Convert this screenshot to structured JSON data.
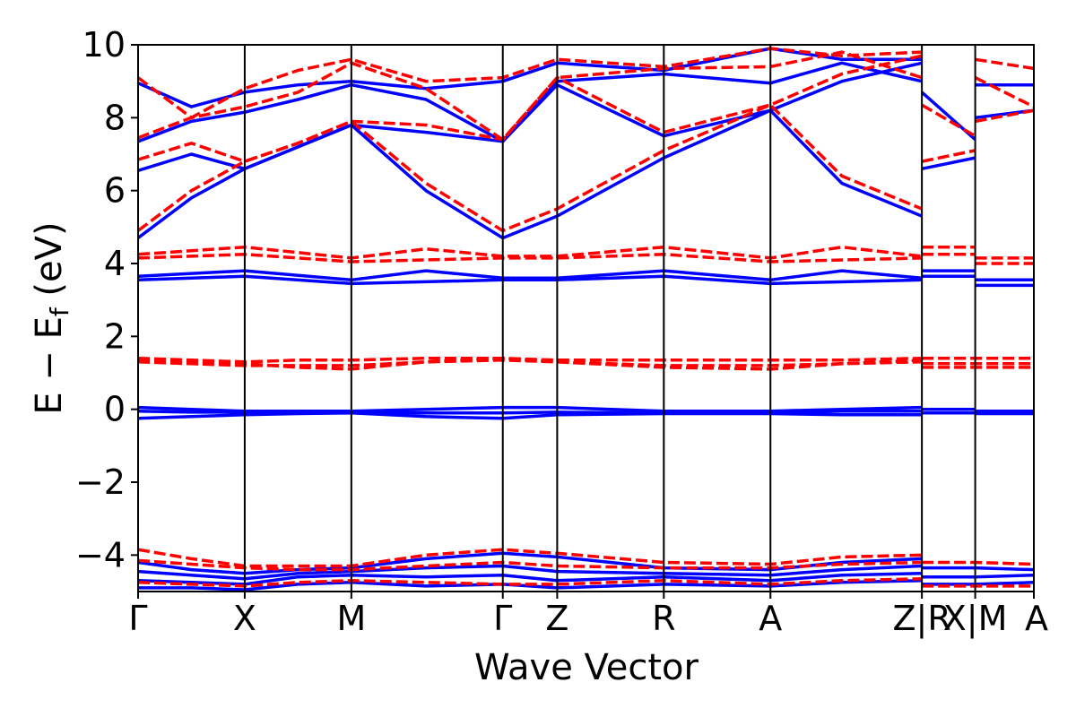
{
  "chart_data": {
    "type": "line",
    "title": "",
    "xlabel": "Wave Vector",
    "ylabel": "E − E_f (eV)",
    "ylabel_parts": {
      "main": "E − E",
      "sub": "f",
      "unit": " (eV)"
    },
    "ylim": [
      -5,
      10
    ],
    "yticks": [
      -4,
      -2,
      0,
      2,
      4,
      6,
      8,
      10
    ],
    "ytick_labels": [
      "−4",
      "−2",
      "0",
      "2",
      "4",
      "6",
      "8",
      "10"
    ],
    "xlim": [
      0,
      8.4
    ],
    "kpoints": [
      {
        "label": "Γ",
        "x": 0.0
      },
      {
        "label": "X",
        "x": 1.0
      },
      {
        "label": "M",
        "x": 2.0
      },
      {
        "label": "Γ",
        "x": 3.42
      },
      {
        "label": "Z",
        "x": 3.93
      },
      {
        "label": "R",
        "x": 4.93
      },
      {
        "label": "A",
        "x": 5.93
      },
      {
        "label": "Z|R",
        "x": 7.35
      },
      {
        "label": "X|M",
        "x": 7.85
      },
      {
        "label": "A",
        "x": 8.4
      }
    ],
    "vlines": [
      1.0,
      2.0,
      3.42,
      3.93,
      4.93,
      5.93,
      7.35,
      7.85
    ],
    "grid": false,
    "series_styles": {
      "spin_up": {
        "color": "#0000ff",
        "dash": "solid"
      },
      "spin_down": {
        "color": "#ff0000",
        "dash": "dashed"
      }
    },
    "series": [
      {
        "style": "spin_up",
        "x": [
          0,
          0.5,
          1.0,
          1.5,
          2.0,
          2.7,
          3.42,
          3.93,
          4.93,
          5.93,
          6.6,
          7.35
        ],
        "y": [
          0.05,
          0.0,
          -0.05,
          -0.05,
          -0.05,
          0.0,
          0.05,
          0.05,
          -0.05,
          -0.05,
          0.0,
          0.05
        ]
      },
      {
        "style": "spin_up",
        "x": [
          0,
          0.5,
          1.0,
          1.5,
          2.0,
          2.7,
          3.42,
          3.93,
          4.93,
          5.93,
          6.6,
          7.35
        ],
        "y": [
          -0.05,
          -0.08,
          -0.08,
          -0.08,
          -0.08,
          -0.1,
          -0.1,
          -0.08,
          -0.1,
          -0.1,
          -0.05,
          -0.05
        ]
      },
      {
        "style": "spin_up",
        "x": [
          0,
          0.5,
          1.0,
          1.5,
          2.0,
          2.7,
          3.42,
          3.93,
          4.93,
          5.93,
          6.6,
          7.35
        ],
        "y": [
          -0.25,
          -0.2,
          -0.15,
          -0.12,
          -0.1,
          -0.2,
          -0.25,
          -0.15,
          -0.12,
          -0.12,
          -0.15,
          -0.15
        ]
      },
      {
        "style": "spin_up",
        "x": [
          7.35,
          7.85
        ],
        "y": [
          0.0,
          0.0
        ]
      },
      {
        "style": "spin_up",
        "x": [
          7.35,
          7.85
        ],
        "y": [
          -0.1,
          -0.1
        ]
      },
      {
        "style": "spin_up",
        "x": [
          7.85,
          8.4
        ],
        "y": [
          -0.05,
          -0.05
        ]
      },
      {
        "style": "spin_up",
        "x": [
          7.85,
          8.4
        ],
        "y": [
          -0.12,
          -0.12
        ]
      },
      {
        "style": "spin_up",
        "x": [
          0,
          1.0,
          2.0,
          2.7,
          3.42,
          3.93,
          4.93,
          5.93,
          6.6,
          7.35
        ],
        "y": [
          3.65,
          3.8,
          3.55,
          3.8,
          3.6,
          3.6,
          3.8,
          3.55,
          3.8,
          3.6
        ]
      },
      {
        "style": "spin_up",
        "x": [
          0,
          1.0,
          2.0,
          3.42,
          3.93,
          4.93,
          5.93,
          7.35
        ],
        "y": [
          3.55,
          3.65,
          3.45,
          3.55,
          3.55,
          3.65,
          3.45,
          3.55
        ]
      },
      {
        "style": "spin_up",
        "x": [
          7.35,
          7.85
        ],
        "y": [
          3.8,
          3.8
        ]
      },
      {
        "style": "spin_up",
        "x": [
          7.35,
          7.85
        ],
        "y": [
          3.65,
          3.65
        ]
      },
      {
        "style": "spin_up",
        "x": [
          7.85,
          8.4
        ],
        "y": [
          3.55,
          3.55
        ]
      },
      {
        "style": "spin_up",
        "x": [
          7.85,
          8.4
        ],
        "y": [
          3.4,
          3.4
        ]
      },
      {
        "style": "spin_up",
        "x": [
          0,
          0.5,
          1.0,
          1.5,
          2.0,
          2.7,
          3.42,
          3.93,
          4.93,
          5.93,
          6.6,
          7.35
        ],
        "y": [
          4.7,
          5.8,
          6.6,
          7.2,
          7.8,
          6.0,
          4.7,
          5.3,
          6.9,
          8.2,
          6.2,
          5.3
        ]
      },
      {
        "style": "spin_up",
        "x": [
          0,
          0.5,
          1.0,
          1.5,
          2.0,
          2.7,
          3.42,
          3.93,
          4.93,
          5.93,
          6.6,
          7.35
        ],
        "y": [
          6.55,
          7.0,
          6.6,
          7.2,
          7.8,
          7.6,
          7.35,
          8.9,
          7.5,
          8.2,
          9.0,
          9.5
        ]
      },
      {
        "style": "spin_up",
        "x": [
          0,
          0.5,
          1.0,
          1.5,
          2.0,
          2.7,
          3.42,
          3.93,
          4.93,
          5.93,
          6.6,
          7.35
        ],
        "y": [
          7.35,
          7.9,
          8.15,
          8.5,
          8.9,
          8.5,
          7.35,
          9.0,
          9.2,
          8.95,
          9.5,
          9.0
        ]
      },
      {
        "style": "spin_up",
        "x": [
          0,
          0.5,
          1.0,
          1.5,
          2.0,
          2.7,
          3.42,
          3.93,
          4.93,
          5.93,
          6.6,
          7.35
        ],
        "y": [
          8.95,
          8.3,
          8.7,
          8.9,
          9.0,
          8.8,
          9.0,
          9.5,
          9.3,
          9.9,
          9.6,
          9.6
        ]
      },
      {
        "style": "spin_up",
        "x": [
          7.35,
          7.85
        ],
        "y": [
          6.6,
          6.9
        ]
      },
      {
        "style": "spin_up",
        "x": [
          7.35,
          7.85
        ],
        "y": [
          8.7,
          7.4
        ]
      },
      {
        "style": "spin_up",
        "x": [
          7.85,
          8.4
        ],
        "y": [
          8.9,
          8.9
        ]
      },
      {
        "style": "spin_up",
        "x": [
          7.85,
          8.4
        ],
        "y": [
          8.0,
          8.2
        ]
      },
      {
        "style": "spin_up",
        "x": [
          0,
          0.5,
          1.0,
          1.5,
          2.0,
          2.7,
          3.42,
          3.93,
          4.93,
          5.93,
          6.6,
          7.35
        ],
        "y": [
          -4.2,
          -4.4,
          -4.5,
          -4.4,
          -4.35,
          -4.1,
          -3.95,
          -4.05,
          -4.35,
          -4.4,
          -4.2,
          -4.1
        ]
      },
      {
        "style": "spin_up",
        "x": [
          0,
          0.5,
          1.0,
          1.5,
          2.0,
          2.7,
          3.42,
          3.93,
          4.93,
          5.93,
          6.6,
          7.35
        ],
        "y": [
          -4.45,
          -4.55,
          -4.65,
          -4.5,
          -4.45,
          -4.35,
          -4.3,
          -4.45,
          -4.5,
          -4.55,
          -4.4,
          -4.3
        ]
      },
      {
        "style": "spin_up",
        "x": [
          0,
          0.5,
          1.0,
          1.5,
          2.0,
          2.7,
          3.42,
          3.93,
          4.93,
          5.93,
          6.6,
          7.35
        ],
        "y": [
          -4.7,
          -4.75,
          -4.8,
          -4.6,
          -4.55,
          -4.6,
          -4.55,
          -4.7,
          -4.6,
          -4.7,
          -4.55,
          -4.5
        ]
      },
      {
        "style": "spin_up",
        "x": [
          0,
          0.5,
          1.0,
          1.5,
          2.0,
          2.7,
          3.42,
          3.93,
          4.93,
          5.93,
          6.6,
          7.35
        ],
        "y": [
          -4.9,
          -4.9,
          -4.95,
          -4.8,
          -4.75,
          -4.85,
          -4.8,
          -4.9,
          -4.8,
          -4.85,
          -4.75,
          -4.7
        ]
      },
      {
        "style": "spin_up",
        "x": [
          7.35,
          7.85,
          8.4
        ],
        "y": [
          -4.35,
          -4.35,
          -4.4
        ]
      },
      {
        "style": "spin_up",
        "x": [
          7.35,
          7.85,
          8.4
        ],
        "y": [
          -4.6,
          -4.6,
          -4.55
        ]
      },
      {
        "style": "spin_up",
        "x": [
          7.35,
          7.85,
          8.4
        ],
        "y": [
          -4.8,
          -4.8,
          -4.75
        ]
      },
      {
        "style": "spin_down",
        "x": [
          0,
          0.5,
          1.0,
          1.5,
          2.0,
          2.7,
          3.42,
          3.93,
          4.93,
          5.93,
          6.6,
          7.35
        ],
        "y": [
          1.4,
          1.35,
          1.3,
          1.35,
          1.35,
          1.4,
          1.4,
          1.35,
          1.35,
          1.35,
          1.35,
          1.4
        ]
      },
      {
        "style": "spin_down",
        "x": [
          0,
          0.5,
          1.0,
          1.5,
          2.0,
          2.7,
          3.42,
          3.93,
          4.93,
          5.93,
          6.6,
          7.35
        ],
        "y": [
          1.3,
          1.25,
          1.2,
          1.2,
          1.2,
          1.3,
          1.35,
          1.3,
          1.2,
          1.2,
          1.25,
          1.3
        ]
      },
      {
        "style": "spin_down",
        "x": [
          0,
          0.5,
          1.0,
          1.5,
          2.0,
          2.7,
          3.42,
          3.93,
          4.93,
          5.93,
          6.6,
          7.35
        ],
        "y": [
          1.35,
          1.3,
          1.25,
          1.15,
          1.1,
          1.3,
          1.4,
          1.3,
          1.15,
          1.1,
          1.25,
          1.35
        ]
      },
      {
        "style": "spin_down",
        "x": [
          7.35,
          8.4
        ],
        "y": [
          1.4,
          1.4
        ]
      },
      {
        "style": "spin_down",
        "x": [
          7.35,
          8.4
        ],
        "y": [
          1.25,
          1.25
        ]
      },
      {
        "style": "spin_down",
        "x": [
          7.35,
          8.4
        ],
        "y": [
          1.15,
          1.15
        ]
      },
      {
        "style": "spin_down",
        "x": [
          0,
          1.0,
          2.0,
          2.7,
          3.42,
          3.93,
          4.93,
          5.93,
          6.6,
          7.35
        ],
        "y": [
          4.25,
          4.45,
          4.15,
          4.4,
          4.2,
          4.2,
          4.45,
          4.15,
          4.45,
          4.2
        ]
      },
      {
        "style": "spin_down",
        "x": [
          0,
          1.0,
          2.0,
          3.42,
          3.93,
          4.93,
          5.93,
          7.35
        ],
        "y": [
          4.15,
          4.25,
          4.05,
          4.15,
          4.15,
          4.25,
          4.05,
          4.15
        ]
      },
      {
        "style": "spin_down",
        "x": [
          7.35,
          7.85
        ],
        "y": [
          4.45,
          4.45
        ]
      },
      {
        "style": "spin_down",
        "x": [
          7.35,
          7.85
        ],
        "y": [
          4.25,
          4.25
        ]
      },
      {
        "style": "spin_down",
        "x": [
          7.85,
          8.4
        ],
        "y": [
          4.15,
          4.15
        ]
      },
      {
        "style": "spin_down",
        "x": [
          7.85,
          8.4
        ],
        "y": [
          4.0,
          4.0
        ]
      },
      {
        "style": "spin_down",
        "x": [
          0,
          0.5,
          1.0,
          1.5,
          2.0,
          2.7,
          3.42,
          3.93,
          4.93,
          5.93,
          6.6,
          7.35
        ],
        "y": [
          4.9,
          6.0,
          6.8,
          7.3,
          7.9,
          6.2,
          4.9,
          5.5,
          7.1,
          8.35,
          6.4,
          5.5
        ]
      },
      {
        "style": "spin_down",
        "x": [
          0,
          0.5,
          1.0,
          1.5,
          2.0,
          2.7,
          3.42,
          3.93,
          4.93,
          5.93,
          6.6,
          7.35
        ],
        "y": [
          6.85,
          7.3,
          6.8,
          7.3,
          7.9,
          7.8,
          7.4,
          9.1,
          7.6,
          8.35,
          9.2,
          9.7
        ]
      },
      {
        "style": "spin_down",
        "x": [
          0,
          0.5,
          1.0,
          1.5,
          2.0,
          2.7,
          3.42,
          3.93,
          4.93,
          5.93,
          6.6,
          7.35
        ],
        "y": [
          7.45,
          8.0,
          8.3,
          8.7,
          9.5,
          8.8,
          7.4,
          9.1,
          9.35,
          9.4,
          9.8,
          9.1
        ]
      },
      {
        "style": "spin_down",
        "x": [
          0,
          0.5,
          1.0,
          1.5,
          2.0,
          2.7,
          3.42,
          3.93,
          4.93,
          5.93,
          6.6,
          7.35
        ],
        "y": [
          9.1,
          8.0,
          8.8,
          9.3,
          9.6,
          9.0,
          9.1,
          9.6,
          9.4,
          9.9,
          9.7,
          9.8
        ]
      },
      {
        "style": "spin_down",
        "x": [
          7.35,
          7.85
        ],
        "y": [
          6.8,
          7.1
        ]
      },
      {
        "style": "spin_down",
        "x": [
          7.35,
          7.85
        ],
        "y": [
          8.35,
          7.5
        ]
      },
      {
        "style": "spin_down",
        "x": [
          7.85,
          8.4
        ],
        "y": [
          9.6,
          9.35
        ]
      },
      {
        "style": "spin_down",
        "x": [
          7.85,
          8.4
        ],
        "y": [
          7.9,
          8.2
        ]
      },
      {
        "style": "spin_down",
        "x": [
          7.85,
          8.4
        ],
        "y": [
          9.1,
          8.3
        ]
      },
      {
        "style": "spin_down",
        "x": [
          0,
          0.5,
          1.0,
          1.5,
          2.0,
          2.7,
          3.42,
          3.93,
          4.93,
          5.93,
          6.6,
          7.35
        ],
        "y": [
          -3.85,
          -4.1,
          -4.3,
          -4.3,
          -4.3,
          -4.0,
          -3.85,
          -3.95,
          -4.2,
          -4.25,
          -4.05,
          -4.0
        ]
      },
      {
        "style": "spin_down",
        "x": [
          0,
          0.5,
          1.0,
          1.5,
          2.0,
          2.7,
          3.42,
          3.93,
          4.93,
          5.93,
          6.6,
          7.35
        ],
        "y": [
          -4.15,
          -4.25,
          -4.35,
          -4.4,
          -4.4,
          -4.3,
          -4.2,
          -4.3,
          -4.35,
          -4.35,
          -4.25,
          -4.2
        ]
      },
      {
        "style": "spin_down",
        "x": [
          0,
          0.5,
          1.0,
          1.5,
          2.0,
          2.7,
          3.42,
          3.93,
          4.93,
          5.93,
          6.6,
          7.35
        ],
        "y": [
          -4.75,
          -4.8,
          -4.85,
          -4.75,
          -4.7,
          -4.75,
          -4.8,
          -4.8,
          -4.7,
          -4.8,
          -4.7,
          -4.65
        ]
      },
      {
        "style": "spin_down",
        "x": [
          7.35,
          7.85,
          8.4
        ],
        "y": [
          -4.2,
          -4.2,
          -4.25
        ]
      },
      {
        "style": "spin_down",
        "x": [
          7.35,
          7.85,
          8.4
        ],
        "y": [
          -4.85,
          -4.85,
          -4.85
        ]
      }
    ]
  }
}
